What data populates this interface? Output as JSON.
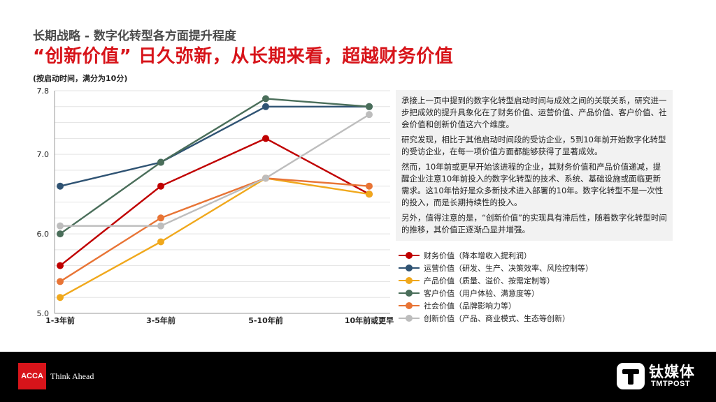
{
  "header": {
    "subtitle": "长期战略 - 数字化转型各方面提升程度",
    "headline": "“创新价值” 日久弥新，从长期来看，超越财务价值",
    "note": "(按启动时间，满分为10分)"
  },
  "textbox": {
    "paragraphs": [
      "承接上一页中提到的数字化转型启动时间与成效之间的关联关系，研究进一步把成效的提升具象化在了财务价值、运营价值、产品价值、客户价值、社会价值和创新价值这六个维度。",
      "研究发现，相比于其他启动时间段的受访企业，5到10年前开始数字化转型的受访企业，在每一项价值方面都能够获得了显著成效。",
      "然而，10年前或更早开始该进程的企业，其财务价值和产品价值递减，提醒企业注意10年前投入的数字化转型的技术、系统、基础设施或面临更新需求。这10年恰好是众多新技术进入部署的10年。数字化转型不是一次性的投入，而是长期持续性的投入。",
      "另外，值得注意的是，“创新价值”的实现具有滞后性，随着数字化转型时间的推移，其价值正逐渐凸显并增强。"
    ]
  },
  "chart_data": {
    "type": "line",
    "categories": [
      "1-3年前",
      "3-5年前",
      "5-10年前",
      "10年前或更早"
    ],
    "y_ticks": [
      "5.0",
      "6.0",
      "7.0",
      "7.8"
    ],
    "ylim": [
      5.0,
      7.8
    ],
    "grid": true,
    "legend_position": "bottom-right",
    "series": [
      {
        "name": "财务价值（降本增收入提利润）",
        "color": "#c00000",
        "values": [
          5.6,
          6.6,
          7.2,
          6.5
        ]
      },
      {
        "name": "运营价值（研发、生产、决策效率、风险控制等）",
        "color": "#2f5373",
        "values": [
          6.6,
          6.9,
          7.6,
          7.6
        ]
      },
      {
        "name": "产品价值（质量、溢价、按需定制等）",
        "color": "#f0a81c",
        "values": [
          5.2,
          5.9,
          6.7,
          6.5
        ]
      },
      {
        "name": "客户价值（用户体验、满意度等）",
        "color": "#4a6e5a",
        "values": [
          6.0,
          6.9,
          7.7,
          7.6
        ]
      },
      {
        "name": "社会价值（品牌影响力等）",
        "color": "#e87435",
        "values": [
          5.4,
          6.2,
          6.7,
          6.6
        ]
      },
      {
        "name": "创新价值（产品、商业模式、生态等创新）",
        "color": "#bdbdbd",
        "values": [
          6.1,
          6.1,
          6.7,
          7.5
        ]
      }
    ]
  },
  "footer": {
    "acca_logo": "ACCA",
    "acca_tagline": "Think Ahead",
    "tmt_logo_cn": "钛媒体",
    "tmt_logo_en": "TMTPOST"
  }
}
